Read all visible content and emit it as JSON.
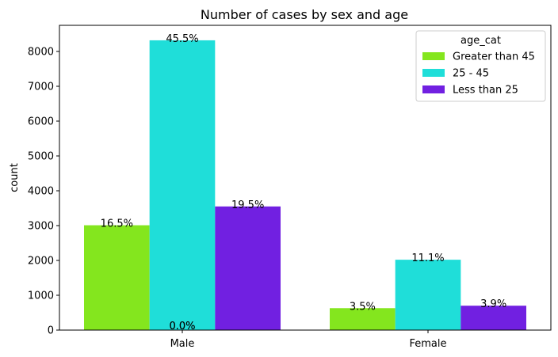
{
  "chart_data": {
    "type": "bar",
    "title": "Number of cases by sex and age",
    "xlabel": "",
    "ylabel": "count",
    "categories": [
      "Male",
      "Female"
    ],
    "ylim": [
      0,
      8750
    ],
    "yticks": [
      0,
      1000,
      2000,
      3000,
      4000,
      5000,
      6000,
      7000,
      8000
    ],
    "grid": false,
    "legend": {
      "title": "age_cat",
      "position": "top-right"
    },
    "series": [
      {
        "name": "Greater than 45",
        "color": "#84e61e",
        "values": [
          3010,
          630
        ],
        "labels": [
          "16.5%",
          "3.5%"
        ]
      },
      {
        "name": "25 - 45",
        "color": "#1fded9",
        "values": [
          8320,
          2020
        ],
        "labels": [
          "45.5%",
          "11.1%"
        ]
      },
      {
        "name": "Less than 25",
        "color": "#7120e1",
        "values": [
          3550,
          700
        ],
        "labels": [
          "19.5%",
          "3.9%"
        ]
      }
    ],
    "extra_labels": [
      "0.0%",
      "0.0%"
    ]
  }
}
